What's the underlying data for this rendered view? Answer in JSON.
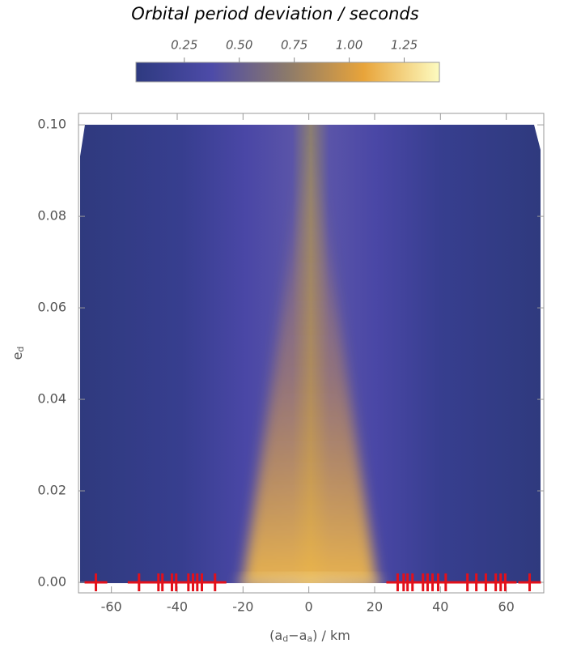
{
  "chart_data": {
    "type": "density",
    "title": "Orbital period deviation / seconds",
    "colormap": [
      "#2e3a80",
      "#4d4ba8",
      "#8c7a6a",
      "#e8a43a",
      "#fdfbc0"
    ],
    "clim": [
      0.03,
      1.41
    ],
    "cticks": [
      0.25,
      {
        "value": 0.5,
        "label": "0.50"
      },
      0.75,
      {
        "value": 1,
        "label": "1.00"
      },
      1.25
    ],
    "xlabel_parts": [
      "(a",
      "d",
      "−a",
      "a",
      ") / km"
    ],
    "ylabel_parts": [
      "e",
      "d"
    ],
    "xlim": [
      -70,
      71.4
    ],
    "ylim": [
      -0.0023,
      0.1025
    ],
    "xticks": [
      -60,
      -40,
      -20,
      0,
      20,
      40,
      60
    ],
    "yticks": [
      {
        "value": 0,
        "label": "0.00"
      },
      {
        "value": 0.02,
        "label": "0.02"
      },
      {
        "value": 0.04,
        "label": "0.04"
      },
      {
        "value": 0.06,
        "label": "0.06"
      },
      {
        "value": 0.08,
        "label": "0.08"
      },
      {
        "value": 0.1,
        "label": "0.10"
      }
    ],
    "markers": {
      "color": "#e3101a",
      "x": [
        -64.7,
        -51.6,
        -45.7,
        -44.5,
        -41.6,
        -40.3,
        -36.6,
        -35.2,
        -33.9,
        -32.5,
        -28.5,
        27.0,
        28.8,
        30.0,
        31.5,
        34.7,
        36.1,
        37.6,
        39.3,
        41.6,
        48.2,
        50.9,
        53.8,
        56.8,
        58.3,
        59.7,
        67.1
      ],
      "y": [
        0,
        0,
        0,
        0,
        0,
        0,
        0,
        0,
        0,
        0,
        0,
        0,
        0,
        0,
        0,
        0,
        0,
        0,
        0,
        0,
        0,
        0,
        0,
        0,
        0,
        0,
        0
      ]
    }
  }
}
